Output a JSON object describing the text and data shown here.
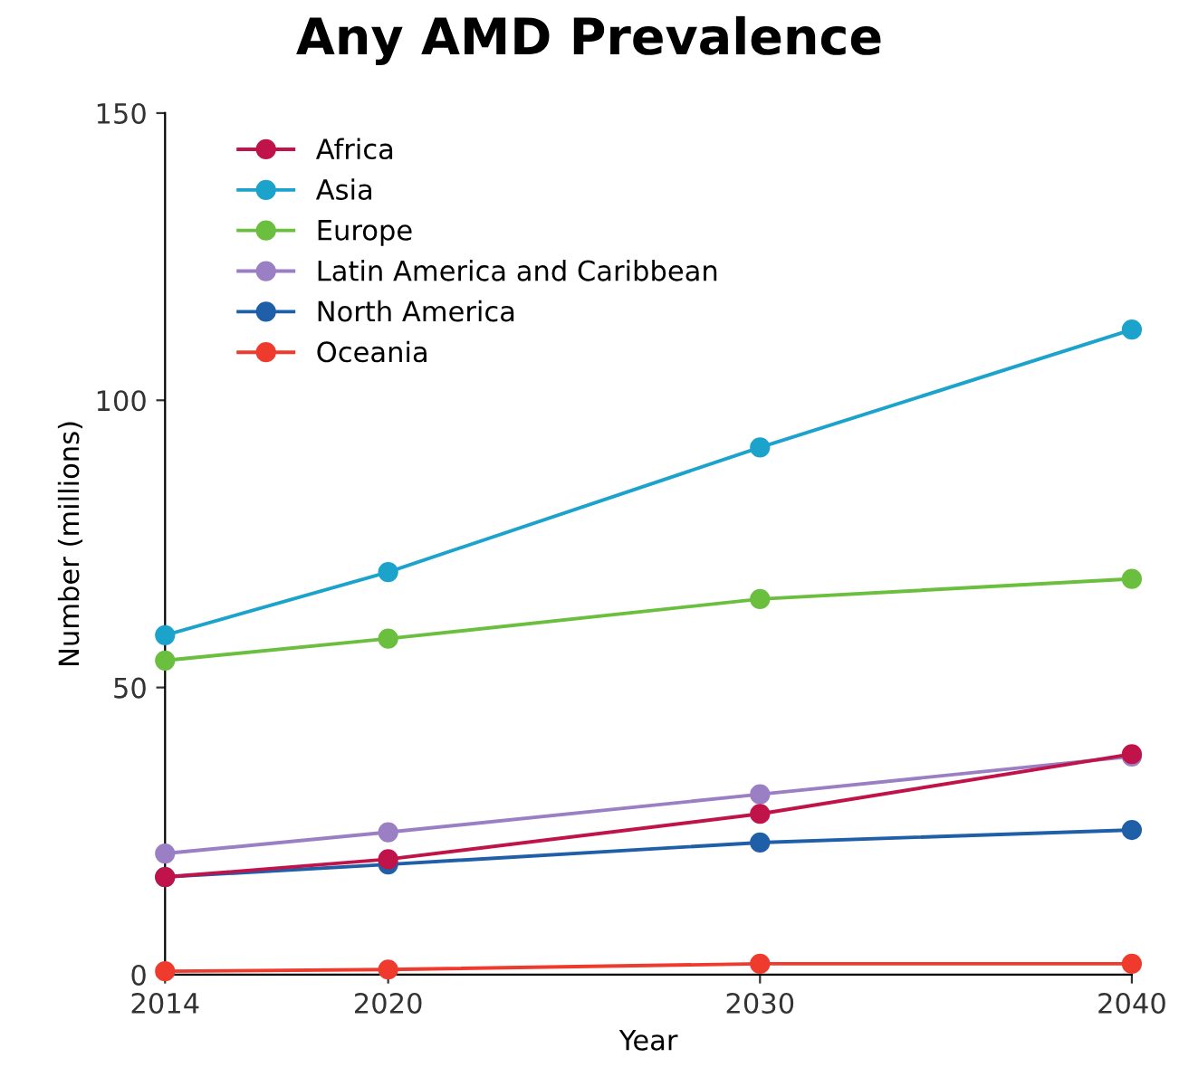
{
  "chart_data": {
    "type": "line",
    "title": "Any AMD Prevalence",
    "xlabel": "Year",
    "ylabel": "Number (millions)",
    "x": [
      2014,
      2020,
      2030,
      2040
    ],
    "series": [
      {
        "name": "Africa",
        "color": "#c0134a",
        "values": [
          17,
          20.1,
          28,
          38.4
        ]
      },
      {
        "name": "Asia",
        "color": "#1ba3cc",
        "values": [
          59.1,
          70.1,
          91.8,
          112.3
        ]
      },
      {
        "name": "Europe",
        "color": "#6bbf3f",
        "values": [
          54.7,
          58.5,
          65.4,
          68.9
        ]
      },
      {
        "name": "Latin America and Caribbean",
        "color": "#9b7fc4",
        "values": [
          21.1,
          24.8,
          31.4,
          38
        ]
      },
      {
        "name": "North America",
        "color": "#1f5fa8",
        "values": [
          17,
          19.2,
          23,
          25.2
        ]
      },
      {
        "name": "Oceania",
        "color": "#ee3b2e",
        "values": [
          0.6,
          0.9,
          1.9,
          1.9
        ]
      }
    ],
    "xlim": [
      2014,
      2040
    ],
    "xticks": [
      2014,
      2020,
      2030,
      2040
    ],
    "ylim": [
      0,
      150
    ],
    "yticks": [
      0,
      50,
      100,
      150
    ],
    "grid": false,
    "legend": "top left",
    "marker": "circle",
    "line_style": "solid"
  }
}
